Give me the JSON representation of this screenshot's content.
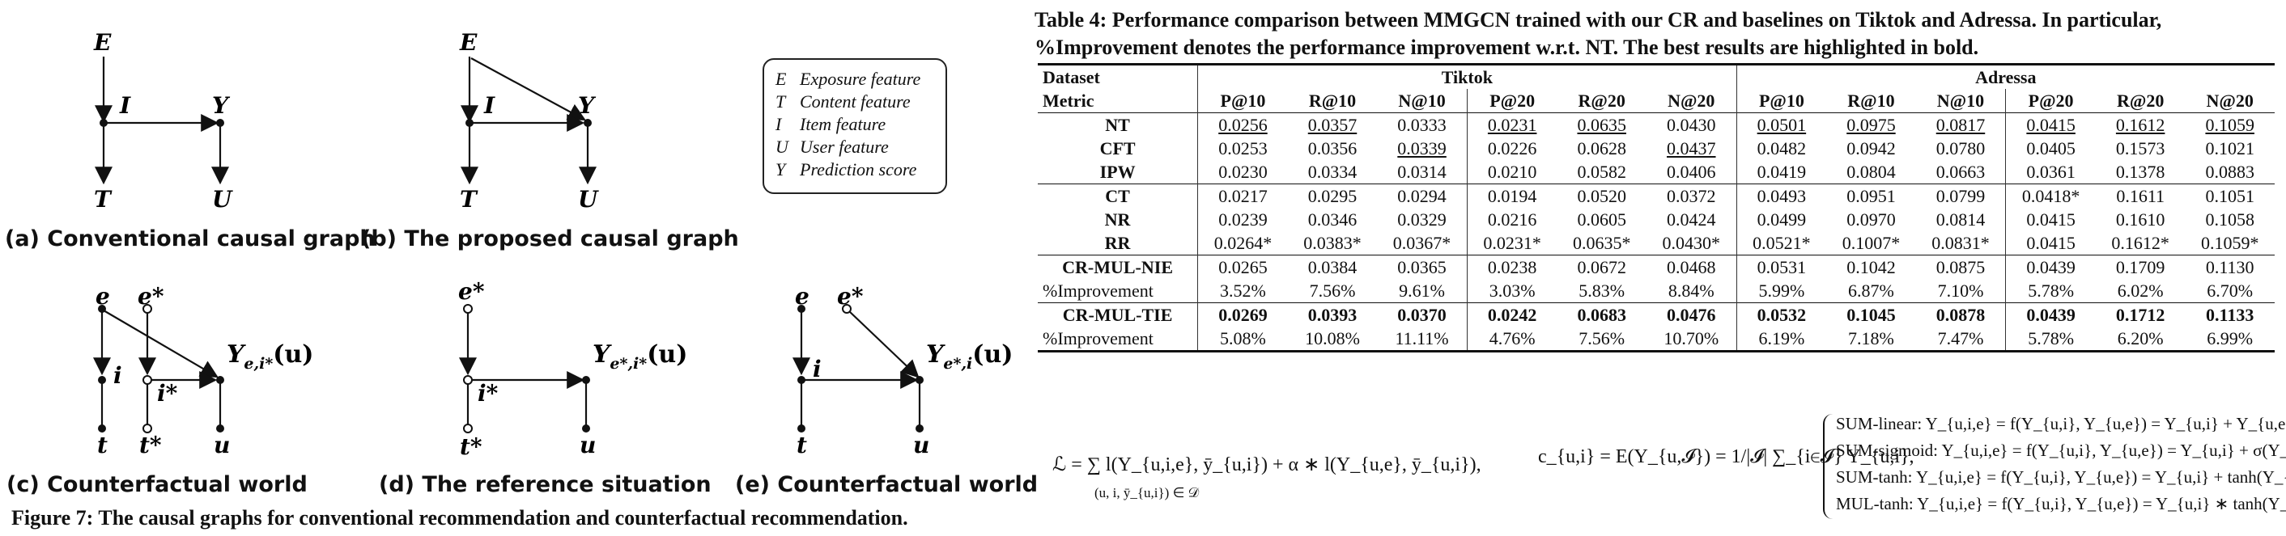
{
  "figure": {
    "nodes": {
      "E": "E",
      "T": "T",
      "I": "I",
      "Y": "Y",
      "U": "U",
      "e": "e",
      "e_star": "e*",
      "i": "i",
      "i_star": "i*",
      "t": "t",
      "t_star": "t*",
      "u": "u",
      "y_c": "Y",
      "y_c_sub": "e,i*",
      "y_d": "Y",
      "y_d_sub": "e*,i*",
      "y_e": "Y",
      "y_e_sub": "e*,i",
      "arg": "(u)"
    },
    "subcaptions": {
      "a": "(a) Conventional causal graph",
      "b": "(b) The proposed causal graph",
      "c": "(c) Counterfactual world",
      "d": "(d) The reference situation",
      "e": "(e) Counterfactual world"
    },
    "legend": [
      {
        "sym": "E",
        "text": "Exposure feature"
      },
      {
        "sym": "T",
        "text": "Content feature"
      },
      {
        "sym": "I",
        "text": "Item feature"
      },
      {
        "sym": "U",
        "text": "User feature"
      },
      {
        "sym": "Y",
        "text": "Prediction score"
      }
    ],
    "caption": "Figure 7: The causal graphs for conventional recommendation and counterfactual recommendation."
  },
  "table": {
    "caption_line1": "Table 4: Performance comparison between MMGCN trained with our CR and baselines on Tiktok and Adressa. In particular,",
    "caption_line2": "%Improvement denotes the performance improvement w.r.t. NT. The best results are highlighted in bold.",
    "dataset_label": "Dataset",
    "metric_label": "Metric",
    "datasets": [
      "Tiktok",
      "Adressa"
    ],
    "metrics": [
      "P@10",
      "R@10",
      "N@10",
      "P@20",
      "R@20",
      "N@20",
      "P@10",
      "R@10",
      "N@10",
      "P@20",
      "R@20",
      "N@20"
    ],
    "groups": [
      [
        {
          "name": "NT",
          "cells": [
            "0.0256",
            "0.0357",
            "0.0333",
            "0.0231",
            "0.0635",
            "0.0430",
            "0.0501",
            "0.0975",
            "0.0817",
            "0.0415",
            "0.1612",
            "0.1059"
          ],
          "underline": [
            0,
            1,
            3,
            4,
            6,
            7,
            8,
            9,
            10,
            11
          ]
        },
        {
          "name": "CFT",
          "cells": [
            "0.0253",
            "0.0356",
            "0.0339",
            "0.0226",
            "0.0628",
            "0.0437",
            "0.0482",
            "0.0942",
            "0.0780",
            "0.0405",
            "0.1573",
            "0.1021"
          ],
          "underline": [
            2,
            5
          ]
        },
        {
          "name": "IPW",
          "cells": [
            "0.0230",
            "0.0334",
            "0.0314",
            "0.0210",
            "0.0582",
            "0.0406",
            "0.0419",
            "0.0804",
            "0.0663",
            "0.0361",
            "0.1378",
            "0.0883"
          ],
          "underline": []
        }
      ],
      [
        {
          "name": "CT",
          "cells": [
            "0.0217",
            "0.0295",
            "0.0294",
            "0.0194",
            "0.0520",
            "0.0372",
            "0.0493",
            "0.0951",
            "0.0799",
            "0.0418*",
            "0.1611",
            "0.1051"
          ],
          "underline": []
        },
        {
          "name": "NR",
          "cells": [
            "0.0239",
            "0.0346",
            "0.0329",
            "0.0216",
            "0.0605",
            "0.0424",
            "0.0499",
            "0.0970",
            "0.0814",
            "0.0415",
            "0.1610",
            "0.1058"
          ],
          "underline": []
        },
        {
          "name": "RR",
          "cells": [
            "0.0264*",
            "0.0383*",
            "0.0367*",
            "0.0231*",
            "0.0635*",
            "0.0430*",
            "0.0521*",
            "0.1007*",
            "0.0831*",
            "0.0415",
            "0.1612*",
            "0.1059*"
          ],
          "underline": []
        }
      ],
      [
        {
          "name": "CR-MUL-NIE",
          "cells": [
            "0.0265",
            "0.0384",
            "0.0365",
            "0.0238",
            "0.0672",
            "0.0468",
            "0.0531",
            "0.1042",
            "0.0875",
            "0.0439",
            "0.1709",
            "0.1130"
          ],
          "underline": []
        },
        {
          "name": "%Improvement",
          "cells": [
            "3.52%",
            "7.56%",
            "9.61%",
            "3.03%",
            "5.83%",
            "8.84%",
            "5.99%",
            "6.87%",
            "7.10%",
            "5.78%",
            "6.02%",
            "6.70%"
          ],
          "underline": [],
          "plain": true
        }
      ],
      [
        {
          "name": "CR-MUL-TIE",
          "cells": [
            "0.0269",
            "0.0393",
            "0.0370",
            "0.0242",
            "0.0683",
            "0.0476",
            "0.0532",
            "0.1045",
            "0.0878",
            "0.0439",
            "0.1712",
            "0.1133"
          ],
          "underline": [],
          "bold": true
        },
        {
          "name": "%Improvement",
          "cells": [
            "5.08%",
            "10.08%",
            "11.11%",
            "4.76%",
            "7.56%",
            "10.70%",
            "6.19%",
            "7.18%",
            "7.47%",
            "5.78%",
            "6.20%",
            "6.99%"
          ],
          "underline": [],
          "plain": true
        }
      ]
    ]
  },
  "formulas": {
    "loss": "ℒ = ∑ l(Y_{u,i,e}, ȳ_{u,i}) + α ∗ l(Y_{u,e}, ȳ_{u,i}),",
    "loss_sum_sub": "(u, i, ȳ_{u,i}) ∈ 𝒟",
    "cui": "c_{u,i} = E(Y_{u,𝓘}) = 1/|𝓘| ∑_{i∈𝓘} Y_{u,i},",
    "cases": [
      "SUM-linear: Y_{u,i,e} = f(Y_{u,i}, Y_{u,e}) = Y_{u,i} + Y_{u,e},",
      "SUM-sigmoid: Y_{u,i,e} = f(Y_{u,i}, Y_{u,e}) = Y_{u,i} + σ(Y_{u,e}),",
      "SUM-tanh: Y_{u,i,e} = f(Y_{u,i}, Y_{u,e}) = Y_{u,i} + tanh(Y_{u,e}),",
      "MUL-tanh: Y_{u,i,e} = f(Y_{u,i}, Y_{u,e}) = Y_{u,i} ∗ tanh(Y_{u,e})."
    ]
  }
}
